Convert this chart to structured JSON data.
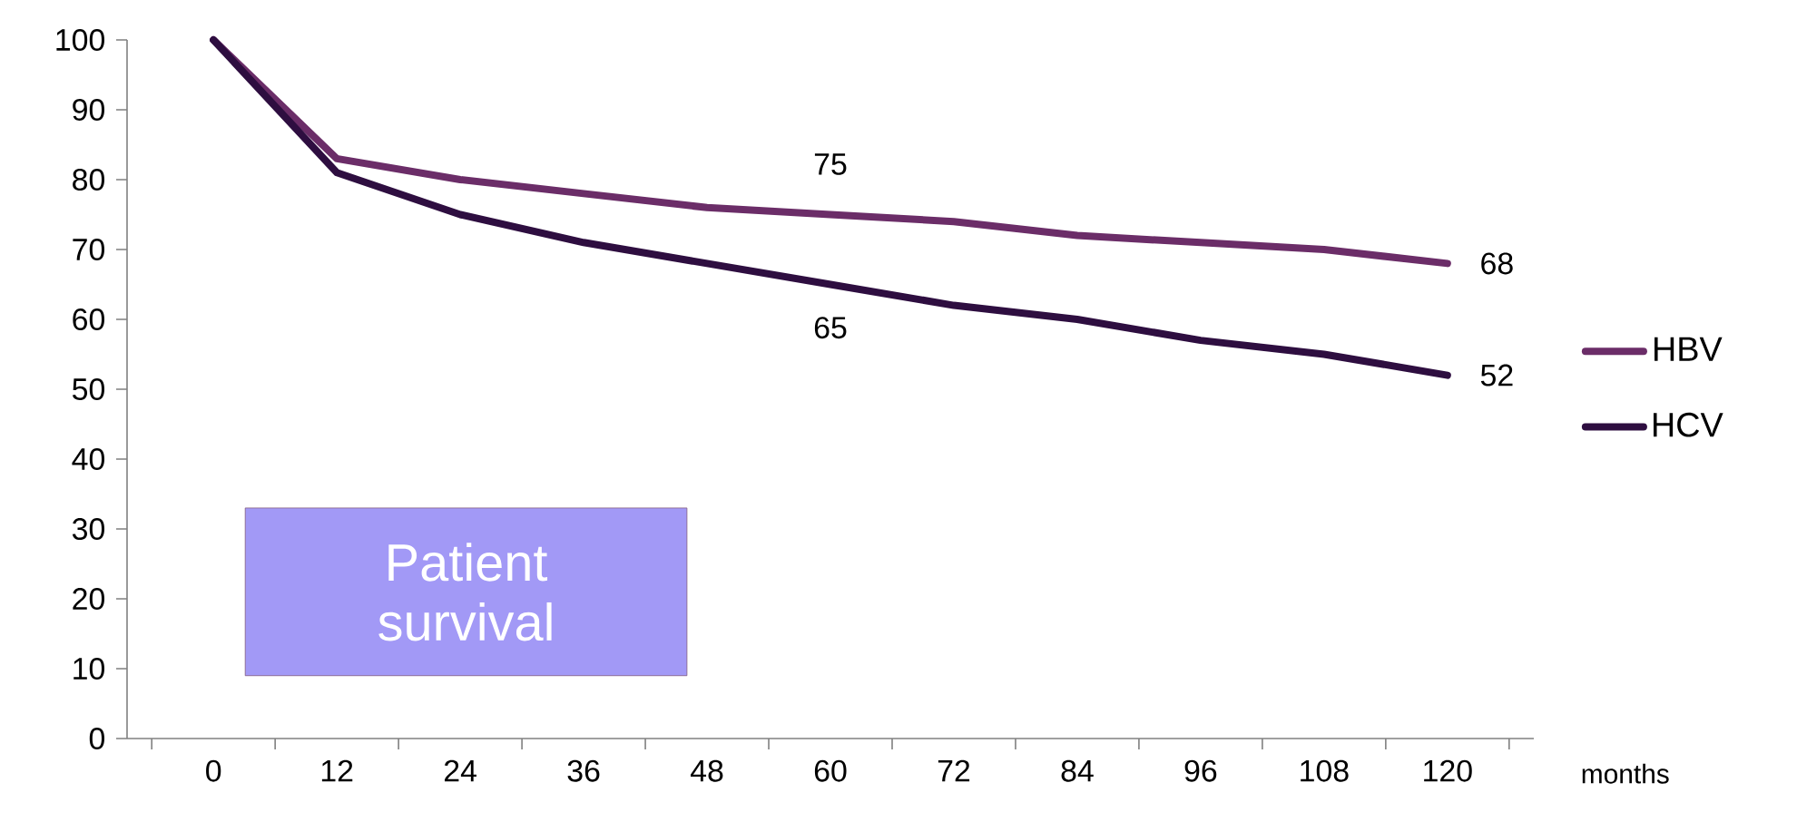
{
  "chart_data": {
    "type": "line",
    "categories": [
      "0",
      "12",
      "24",
      "36",
      "48",
      "60",
      "72",
      "84",
      "96",
      "108",
      "120"
    ],
    "xlabel": "months",
    "series": [
      {
        "name": "HBV",
        "color": "#6b2d68",
        "values": [
          100,
          83,
          80,
          78,
          76,
          75,
          74,
          72,
          71,
          70,
          68
        ],
        "value_labels": [
          null,
          null,
          null,
          null,
          null,
          "75",
          null,
          null,
          null,
          null,
          "68"
        ]
      },
      {
        "name": "HCV",
        "color": "#2e0e40",
        "values": [
          100,
          81,
          75,
          71,
          68,
          65,
          62,
          60,
          57,
          55,
          52
        ],
        "value_labels": [
          null,
          null,
          null,
          null,
          null,
          "65",
          null,
          null,
          null,
          null,
          "52"
        ]
      }
    ],
    "ylim": [
      0,
      100
    ],
    "yticks": [
      0,
      10,
      20,
      30,
      40,
      50,
      60,
      70,
      80,
      90,
      100
    ],
    "grid": false,
    "legend": "right",
    "marker": "none",
    "line_style": "solid",
    "annotations": [
      "Patient survival"
    ]
  }
}
